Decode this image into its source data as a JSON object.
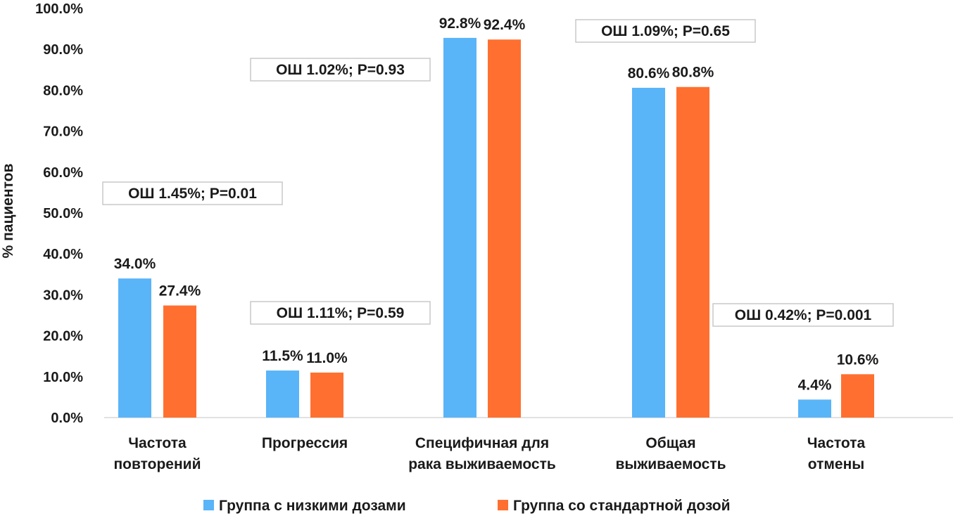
{
  "chart_data": {
    "type": "bar",
    "ylabel": "% пациентов",
    "ylim": [
      0,
      100
    ],
    "y_ticks": [
      "0.0%",
      "10.0%",
      "20.0%",
      "30.0%",
      "40.0%",
      "50.0%",
      "60.0%",
      "70.0%",
      "80.0%",
      "90.0%",
      "100.0%"
    ],
    "grid": false,
    "legend_position": "bottom",
    "categories": [
      [
        "Частота",
        "повторений"
      ],
      [
        "Прогрессия"
      ],
      [
        "Специфичная для",
        "рака выживаемость"
      ],
      [
        "Общая",
        "выживаемость"
      ],
      [
        "Частота",
        "отмены"
      ]
    ],
    "series": [
      {
        "name": "Группа с низкими дозами",
        "color": "#5AB4F8",
        "values": [
          34.0,
          11.5,
          92.8,
          80.6,
          4.4
        ],
        "labels": [
          "34.0%",
          "11.5%",
          "92.8%",
          "80.6%",
          "4.4%"
        ]
      },
      {
        "name": "Группа со стандартной дозой",
        "color": "#FF7030",
        "values": [
          27.4,
          11.0,
          92.4,
          80.8,
          10.6
        ],
        "labels": [
          "27.4%",
          "11.0%",
          "92.4%",
          "80.8%",
          "10.6%"
        ]
      }
    ],
    "annotations": [
      "ОШ 1.45%; P=0.01",
      "ОШ 1.11%; P=0.59",
      "ОШ 1.02%; P=0.93",
      "ОШ 1.09%; P=0.65",
      "ОШ 0.42%; P=0.001"
    ]
  }
}
